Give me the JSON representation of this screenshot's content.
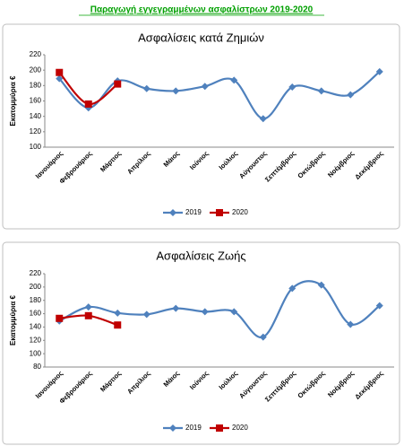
{
  "title": "Παραγωγή εγγεγραμμένων ασφαλίστρων 2019-2020",
  "chart_data": [
    {
      "type": "line",
      "title": "Ασφαλίσεις κατά Ζημιών",
      "y_label": "Εκατομμύρια  €",
      "categories": [
        "Ιανουάριος",
        "Φεβρουάριος",
        "Μάρτιος",
        "Απρίλιος",
        "Μάιος",
        "Ιούνιος",
        "Ιούλιος",
        "Αύγουστος",
        "Σεπτέμβριος",
        "Οκτώβριος",
        "Νοέμβριος",
        "Δεκέμβριος"
      ],
      "series": [
        {
          "name": "2019",
          "color": "#4f81bd",
          "marker": "diamond",
          "values": [
            189,
            151,
            186,
            176,
            173,
            179,
            187,
            137,
            178,
            173,
            168,
            198
          ]
        },
        {
          "name": "2020",
          "color": "#c00000",
          "marker": "square",
          "values": [
            197,
            156,
            182,
            null,
            null,
            null,
            null,
            null,
            null,
            null,
            null,
            null
          ]
        }
      ],
      "ylim": [
        100,
        220
      ],
      "yticks": [
        100,
        120,
        140,
        160,
        180,
        200,
        220
      ],
      "grid": false,
      "smooth": true,
      "legend": "bottom"
    },
    {
      "type": "line",
      "title": "Ασφαλίσεις Ζωής",
      "y_label": "Εκατομμύρια  €",
      "categories": [
        "Ιανουάριος",
        "Φεβρουάριος",
        "Μάρτιος",
        "Απρίλιος",
        "Μάιος",
        "Ιούνιος",
        "Ιούλιος",
        "Αύγουστος",
        "Σεπτέμβριος",
        "Οκτώβριος",
        "Νοέμβριος",
        "Δεκέμβριος"
      ],
      "series": [
        {
          "name": "2019",
          "color": "#4f81bd",
          "marker": "diamond",
          "values": [
            149,
            170,
            161,
            159,
            168,
            163,
            163,
            125,
            198,
            203,
            144,
            172
          ]
        },
        {
          "name": "2020",
          "color": "#c00000",
          "marker": "square",
          "values": [
            153,
            157,
            143,
            null,
            null,
            null,
            null,
            null,
            null,
            null,
            null,
            null
          ]
        }
      ],
      "ylim": [
        80,
        220
      ],
      "yticks": [
        80,
        100,
        120,
        140,
        160,
        180,
        200,
        220
      ],
      "grid": false,
      "smooth": true,
      "legend": "bottom"
    }
  ]
}
